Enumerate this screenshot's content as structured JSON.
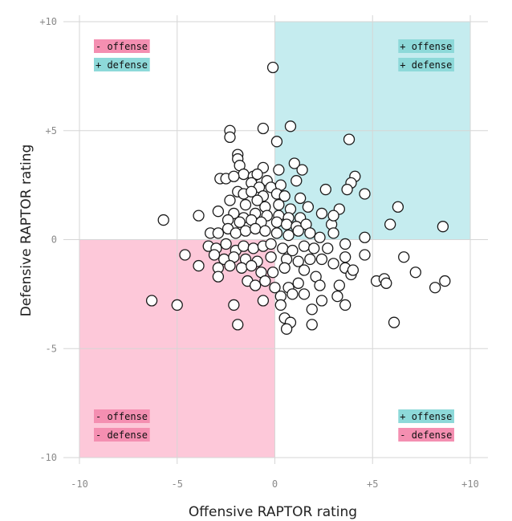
{
  "chart_data": {
    "type": "scatter",
    "xlabel": "Offensive RAPTOR rating",
    "ylabel": "Defensive RAPTOR rating",
    "xlim": [
      -10,
      10
    ],
    "ylim": [
      -10,
      10
    ],
    "xticks": [
      {
        "value": -10,
        "label": "-10"
      },
      {
        "value": -5,
        "label": "-5"
      },
      {
        "value": 0,
        "label": "0"
      },
      {
        "value": 5,
        "label": "+5"
      },
      {
        "value": 10,
        "label": "+10"
      }
    ],
    "yticks": [
      {
        "value": 10,
        "label": "+10"
      },
      {
        "value": 5,
        "label": "+5"
      },
      {
        "value": 0,
        "label": "0"
      },
      {
        "value": -5,
        "label": "-5"
      },
      {
        "value": -10,
        "label": "-10"
      }
    ],
    "grid": true,
    "colors": {
      "positive": "#8dd9d9",
      "positive_fill": "#c5ecef",
      "negative": "#f48fb1",
      "negative_fill": "#fdc8d9"
    },
    "quadrant_labels": [
      {
        "position": "top-left",
        "lines": [
          {
            "text": "- offense",
            "tone": "negative"
          },
          {
            "text": "+ defense",
            "tone": "positive"
          }
        ]
      },
      {
        "position": "top-right",
        "lines": [
          {
            "text": "+ offense",
            "tone": "positive"
          },
          {
            "text": "+ defense",
            "tone": "positive"
          }
        ]
      },
      {
        "position": "bottom-left",
        "lines": [
          {
            "text": "- offense",
            "tone": "negative"
          },
          {
            "text": "- defense",
            "tone": "negative"
          }
        ]
      },
      {
        "position": "bottom-right",
        "lines": [
          {
            "text": "+ offense",
            "tone": "positive"
          },
          {
            "text": "- defense",
            "tone": "negative"
          }
        ]
      }
    ],
    "points": [
      [
        -0.1,
        7.9
      ],
      [
        -0.6,
        5.1
      ],
      [
        0.8,
        5.2
      ],
      [
        -2.3,
        5.0
      ],
      [
        -2.3,
        4.7
      ],
      [
        0.1,
        4.5
      ],
      [
        3.8,
        4.6
      ],
      [
        -1.9,
        3.9
      ],
      [
        -1.9,
        3.7
      ],
      [
        -1.8,
        3.4
      ],
      [
        -0.6,
        3.3
      ],
      [
        1.0,
        3.5
      ],
      [
        1.4,
        3.2
      ],
      [
        0.2,
        3.2
      ],
      [
        -1.6,
        3.0
      ],
      [
        -1.1,
        2.9
      ],
      [
        -0.9,
        3.0
      ],
      [
        -2.8,
        2.8
      ],
      [
        -2.5,
        2.8
      ],
      [
        -2.1,
        2.9
      ],
      [
        -0.4,
        2.7
      ],
      [
        -1.2,
        2.6
      ],
      [
        -0.8,
        2.4
      ],
      [
        -0.2,
        2.4
      ],
      [
        0.3,
        2.5
      ],
      [
        1.1,
        2.7
      ],
      [
        4.1,
        2.9
      ],
      [
        3.9,
        2.6
      ],
      [
        -1.9,
        2.2
      ],
      [
        -1.6,
        2.1
      ],
      [
        -1.2,
        2.2
      ],
      [
        -0.6,
        2.0
      ],
      [
        0.1,
        2.1
      ],
      [
        0.5,
        2.0
      ],
      [
        1.3,
        1.9
      ],
      [
        2.6,
        2.3
      ],
      [
        3.7,
        2.3
      ],
      [
        4.6,
        2.1
      ],
      [
        -2.3,
        1.8
      ],
      [
        -1.5,
        1.6
      ],
      [
        -0.9,
        1.8
      ],
      [
        -0.5,
        1.5
      ],
      [
        0.2,
        1.6
      ],
      [
        0.8,
        1.4
      ],
      [
        1.7,
        1.5
      ],
      [
        -3.9,
        1.1
      ],
      [
        -2.9,
        1.3
      ],
      [
        -2.1,
        1.2
      ],
      [
        -1.6,
        1.0
      ],
      [
        -1.0,
        1.2
      ],
      [
        -0.4,
        1.1
      ],
      [
        0.2,
        1.1
      ],
      [
        0.7,
        1.0
      ],
      [
        1.3,
        1.0
      ],
      [
        2.4,
        1.2
      ],
      [
        3.3,
        1.4
      ],
      [
        6.3,
        1.5
      ],
      [
        -5.7,
        0.9
      ],
      [
        -2.4,
        0.9
      ],
      [
        -1.8,
        0.8
      ],
      [
        -1.2,
        0.9
      ],
      [
        -0.7,
        0.8
      ],
      [
        0.1,
        0.8
      ],
      [
        0.6,
        0.7
      ],
      [
        1.1,
        0.6
      ],
      [
        1.6,
        0.7
      ],
      [
        2.9,
        0.7
      ],
      [
        3.0,
        1.1
      ],
      [
        5.9,
        0.7
      ],
      [
        -3.3,
        0.3
      ],
      [
        -2.9,
        0.3
      ],
      [
        -2.4,
        0.5
      ],
      [
        -2.0,
        0.3
      ],
      [
        -1.5,
        0.4
      ],
      [
        -1.0,
        0.5
      ],
      [
        -0.5,
        0.4
      ],
      [
        0.1,
        0.3
      ],
      [
        0.7,
        0.2
      ],
      [
        1.2,
        0.4
      ],
      [
        1.8,
        0.3
      ],
      [
        2.3,
        0.1
      ],
      [
        3.0,
        0.3
      ],
      [
        4.6,
        0.1
      ],
      [
        8.6,
        0.6
      ],
      [
        -3.4,
        -0.3
      ],
      [
        -3.0,
        -0.4
      ],
      [
        -2.5,
        -0.2
      ],
      [
        -2.0,
        -0.5
      ],
      [
        -1.6,
        -0.3
      ],
      [
        -1.1,
        -0.4
      ],
      [
        -0.6,
        -0.3
      ],
      [
        -0.2,
        -0.2
      ],
      [
        0.4,
        -0.4
      ],
      [
        0.9,
        -0.5
      ],
      [
        1.5,
        -0.3
      ],
      [
        2.0,
        -0.4
      ],
      [
        2.7,
        -0.4
      ],
      [
        3.6,
        -0.2
      ],
      [
        -4.6,
        -0.7
      ],
      [
        -3.1,
        -0.7
      ],
      [
        -2.6,
        -0.9
      ],
      [
        -2.1,
        -0.8
      ],
      [
        -1.5,
        -0.9
      ],
      [
        -0.9,
        -1.0
      ],
      [
        -0.2,
        -0.8
      ],
      [
        0.6,
        -0.9
      ],
      [
        1.2,
        -1.0
      ],
      [
        1.8,
        -0.9
      ],
      [
        2.4,
        -0.9
      ],
      [
        3.0,
        -1.1
      ],
      [
        3.6,
        -0.8
      ],
      [
        4.6,
        -0.7
      ],
      [
        6.6,
        -0.8
      ],
      [
        -3.9,
        -1.2
      ],
      [
        -2.9,
        -1.3
      ],
      [
        -2.3,
        -1.2
      ],
      [
        -1.7,
        -1.3
      ],
      [
        -1.2,
        -1.2
      ],
      [
        -0.7,
        -1.5
      ],
      [
        -0.1,
        -1.5
      ],
      [
        0.5,
        -1.3
      ],
      [
        1.5,
        -1.4
      ],
      [
        2.1,
        -1.7
      ],
      [
        3.6,
        -1.3
      ],
      [
        3.9,
        -1.6
      ],
      [
        4.0,
        -1.4
      ],
      [
        7.2,
        -1.5
      ],
      [
        -2.9,
        -1.7
      ],
      [
        -1.4,
        -1.9
      ],
      [
        -1.0,
        -2.1
      ],
      [
        -0.5,
        -1.9
      ],
      [
        0.0,
        -2.2
      ],
      [
        0.7,
        -2.2
      ],
      [
        1.2,
        -2.0
      ],
      [
        2.3,
        -2.1
      ],
      [
        3.3,
        -2.1
      ],
      [
        5.2,
        -1.9
      ],
      [
        5.6,
        -1.8
      ],
      [
        5.7,
        -2.0
      ],
      [
        8.2,
        -2.2
      ],
      [
        8.7,
        -1.9
      ],
      [
        -6.3,
        -2.8
      ],
      [
        -5.0,
        -3.0
      ],
      [
        -2.1,
        -3.0
      ],
      [
        -0.6,
        -2.8
      ],
      [
        0.3,
        -2.6
      ],
      [
        0.9,
        -2.5
      ],
      [
        1.5,
        -2.5
      ],
      [
        2.4,
        -2.8
      ],
      [
        3.2,
        -2.6
      ],
      [
        3.6,
        -3.0
      ],
      [
        0.3,
        -3.0
      ],
      [
        1.9,
        -3.2
      ],
      [
        0.5,
        -3.6
      ],
      [
        0.8,
        -3.8
      ],
      [
        -1.9,
        -3.9
      ],
      [
        1.9,
        -3.9
      ],
      [
        6.1,
        -3.8
      ],
      [
        0.6,
        -4.1
      ]
    ]
  }
}
